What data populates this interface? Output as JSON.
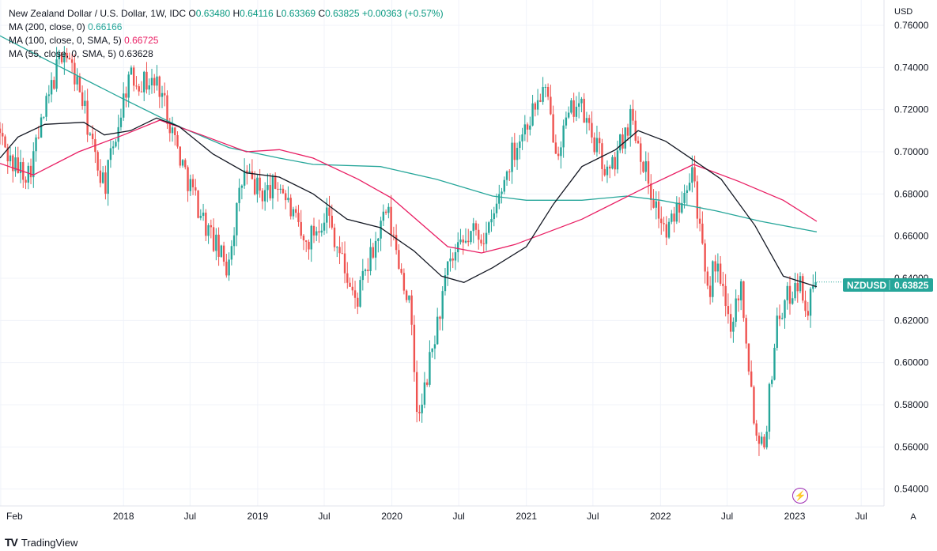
{
  "legend": {
    "title": "New Zealand Dollar / U.S. Dollar, 1W, IDC",
    "ohlc": [
      {
        "label": "O",
        "value": "0.63480"
      },
      {
        "label": "H",
        "value": "0.64116"
      },
      {
        "label": "L",
        "value": "0.63369"
      },
      {
        "label": "C",
        "value": "0.63825"
      }
    ],
    "change": "+0.00363 (+0.57%)",
    "mas": [
      {
        "label": "MA (200, close, 0)",
        "value": "0.66166",
        "color": "#26a69a"
      },
      {
        "label": "MA (100, close, 0, SMA, 5)",
        "value": "0.66725",
        "color": "#e91e63"
      },
      {
        "label": "MA (55, close, 0, SMA, 5)",
        "value": "0.63628",
        "color": "#131722"
      }
    ]
  },
  "price_axis": {
    "currency": "USD",
    "ticks": [
      "0.76000",
      "0.74000",
      "0.72000",
      "0.70000",
      "0.68000",
      "0.66000",
      "0.64000",
      "0.62000",
      "0.60000",
      "0.58000",
      "0.56000",
      "0.54000"
    ]
  },
  "badge": {
    "symbol": "NZDUSD",
    "price": "0.63825",
    "color": "#26a69a"
  },
  "time_axis": {
    "labels": [
      "Feb",
      "2018",
      "Jul",
      "2019",
      "Jul",
      "2020",
      "Jul",
      "2021",
      "Jul",
      "2022",
      "Jul",
      "2023",
      "Jul"
    ]
  },
  "footer": {
    "brand": "TradingView",
    "logo": "TV",
    "scale_mode": "A"
  },
  "colors": {
    "up": "#26a69a",
    "down": "#ef5350"
  },
  "chart_data": {
    "type": "candlestick",
    "title": "New Zealand Dollar / U.S. Dollar, 1W, IDC",
    "ylabel": "USD",
    "ylim": [
      0.532,
      0.772
    ],
    "x_range": [
      "2017-01-30",
      "2023-09-01"
    ],
    "anchors": [
      [
        "2017-01-30",
        0.711
      ],
      [
        "2017-03-10",
        0.694
      ],
      [
        "2017-04-25",
        0.69
      ],
      [
        "2017-06-30",
        0.733
      ],
      [
        "2017-07-28",
        0.75
      ],
      [
        "2017-09-10",
        0.73
      ],
      [
        "2017-10-25",
        0.695
      ],
      [
        "2017-11-20",
        0.685
      ],
      [
        "2018-01-20",
        0.735
      ],
      [
        "2018-04-15",
        0.732
      ],
      [
        "2018-06-15",
        0.695
      ],
      [
        "2018-08-20",
        0.665
      ],
      [
        "2018-10-15",
        0.645
      ],
      [
        "2018-12-01",
        0.69
      ],
      [
        "2019-01-20",
        0.68
      ],
      [
        "2019-03-10",
        0.685
      ],
      [
        "2019-05-15",
        0.655
      ],
      [
        "2019-07-15",
        0.672
      ],
      [
        "2019-10-01",
        0.628
      ],
      [
        "2019-12-25",
        0.672
      ],
      [
        "2020-02-25",
        0.627
      ],
      [
        "2020-03-20",
        0.57
      ],
      [
        "2020-04-20",
        0.6
      ],
      [
        "2020-06-10",
        0.645
      ],
      [
        "2020-08-15",
        0.662
      ],
      [
        "2020-09-25",
        0.66
      ],
      [
        "2020-12-01",
        0.7
      ],
      [
        "2021-02-25",
        0.73
      ],
      [
        "2021-04-01",
        0.702
      ],
      [
        "2021-05-25",
        0.725
      ],
      [
        "2021-08-20",
        0.688
      ],
      [
        "2021-10-20",
        0.718
      ],
      [
        "2021-12-15",
        0.68
      ],
      [
        "2022-01-25",
        0.66
      ],
      [
        "2022-04-05",
        0.695
      ],
      [
        "2022-05-15",
        0.63
      ],
      [
        "2022-06-05",
        0.648
      ],
      [
        "2022-07-15",
        0.618
      ],
      [
        "2022-08-15",
        0.637
      ],
      [
        "2022-09-25",
        0.565
      ],
      [
        "2022-10-20",
        0.565
      ],
      [
        "2022-11-20",
        0.62
      ],
      [
        "2023-01-15",
        0.64
      ],
      [
        "2023-02-15",
        0.625
      ],
      [
        "2023-03-02",
        0.6382
      ]
    ],
    "ma200": [
      [
        "2017-01-30",
        0.755
      ],
      [
        "2017-06-01",
        0.744
      ],
      [
        "2018-01-01",
        0.725
      ],
      [
        "2018-06-01",
        0.712
      ],
      [
        "2018-10-15",
        0.702
      ],
      [
        "2019-03-01",
        0.697
      ],
      [
        "2019-06-01",
        0.694
      ],
      [
        "2019-12-01",
        0.693
      ],
      [
        "2020-05-01",
        0.687
      ],
      [
        "2020-10-01",
        0.679
      ],
      [
        "2021-01-01",
        0.677
      ],
      [
        "2021-06-01",
        0.677
      ],
      [
        "2021-10-01",
        0.679
      ],
      [
        "2022-01-01",
        0.677
      ],
      [
        "2022-06-01",
        0.672
      ],
      [
        "2022-10-01",
        0.667
      ],
      [
        "2023-03-02",
        0.662
      ]
    ],
    "ma100": [
      [
        "2017-01-30",
        0.6945
      ],
      [
        "2017-05-01",
        0.689
      ],
      [
        "2017-09-01",
        0.7
      ],
      [
        "2018-01-01",
        0.708
      ],
      [
        "2018-04-10",
        0.715
      ],
      [
        "2018-08-01",
        0.708
      ],
      [
        "2018-12-01",
        0.7
      ],
      [
        "2019-03-01",
        0.701
      ],
      [
        "2019-06-01",
        0.697
      ],
      [
        "2019-10-01",
        0.687
      ],
      [
        "2020-01-01",
        0.678
      ],
      [
        "2020-06-01",
        0.655
      ],
      [
        "2020-09-01",
        0.652
      ],
      [
        "2020-12-01",
        0.656
      ],
      [
        "2021-06-01",
        0.668
      ],
      [
        "2021-12-01",
        0.684
      ],
      [
        "2022-04-01",
        0.694
      ],
      [
        "2022-08-01",
        0.686
      ],
      [
        "2022-12-01",
        0.677
      ],
      [
        "2023-03-02",
        0.667
      ]
    ],
    "ma55": [
      [
        "2017-01-30",
        0.697
      ],
      [
        "2017-03-20",
        0.707
      ],
      [
        "2017-06-01",
        0.713
      ],
      [
        "2017-09-15",
        0.714
      ],
      [
        "2017-11-10",
        0.708
      ],
      [
        "2018-01-20",
        0.71
      ],
      [
        "2018-04-01",
        0.716
      ],
      [
        "2018-06-01",
        0.712
      ],
      [
        "2018-09-01",
        0.699
      ],
      [
        "2018-12-01",
        0.69
      ],
      [
        "2019-03-01",
        0.688
      ],
      [
        "2019-06-01",
        0.68
      ],
      [
        "2019-09-01",
        0.668
      ],
      [
        "2019-12-01",
        0.664
      ],
      [
        "2020-03-01",
        0.653
      ],
      [
        "2020-05-15",
        0.641
      ],
      [
        "2020-07-15",
        0.638
      ],
      [
        "2020-10-01",
        0.645
      ],
      [
        "2021-01-01",
        0.655
      ],
      [
        "2021-03-15",
        0.675
      ],
      [
        "2021-06-01",
        0.693
      ],
      [
        "2021-09-01",
        0.701
      ],
      [
        "2021-11-01",
        0.71
      ],
      [
        "2022-01-15",
        0.705
      ],
      [
        "2022-03-15",
        0.698
      ],
      [
        "2022-06-15",
        0.687
      ],
      [
        "2022-09-15",
        0.665
      ],
      [
        "2022-12-01",
        0.641
      ],
      [
        "2023-03-02",
        0.636
      ]
    ]
  }
}
